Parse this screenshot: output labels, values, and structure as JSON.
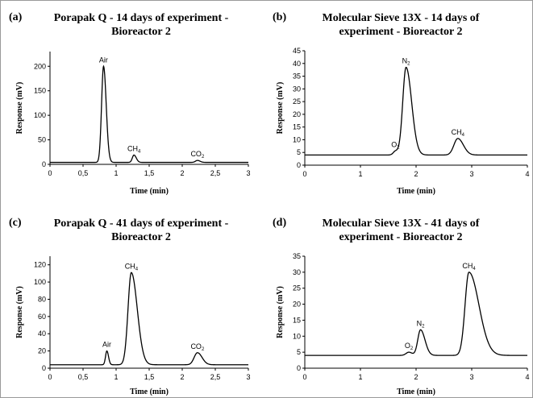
{
  "chart_data": [
    {
      "type": "line",
      "panel_label": "(a)",
      "title_line1": "Porapak Q - 14 days of experiment -",
      "title_line2": "Bioreactor 2",
      "xlabel": "Time (min)",
      "ylabel": "Response (mV)",
      "xlim": [
        0,
        3
      ],
      "ylim": [
        0,
        230
      ],
      "xticks": [
        0,
        0.5,
        1,
        1.5,
        2,
        2.5,
        3
      ],
      "xtick_labels": [
        "0",
        "0,5",
        "1",
        "1,5",
        "2",
        "2,5",
        "3"
      ],
      "yticks": [
        0,
        50,
        100,
        150,
        200
      ],
      "ytick_labels": [
        "0",
        "50",
        "100",
        "150",
        "200"
      ],
      "baseline": 4,
      "peaks": [
        {
          "x": 0.81,
          "height": 200,
          "width_left": 0.03,
          "width_right": 0.04,
          "label": "Air",
          "sub": ""
        },
        {
          "x": 1.27,
          "height": 19,
          "width_left": 0.025,
          "width_right": 0.035,
          "label": "CH",
          "sub": "4"
        },
        {
          "x": 2.23,
          "height": 8,
          "width_left": 0.03,
          "width_right": 0.04,
          "label": "CO",
          "sub": "2"
        }
      ]
    },
    {
      "type": "line",
      "panel_label": "(b)",
      "title_line1": "Molecular Sieve 13X - 14 days of",
      "title_line2": "experiment - Bioreactor 2",
      "xlabel": "Time (min)",
      "ylabel": "Response (mV)",
      "xlim": [
        0,
        4
      ],
      "ylim": [
        0,
        45
      ],
      "xticks": [
        0,
        1,
        2,
        3,
        4
      ],
      "xtick_labels": [
        "0",
        "1",
        "2",
        "3",
        "4"
      ],
      "yticks": [
        0,
        5,
        10,
        15,
        20,
        25,
        30,
        35,
        40,
        45
      ],
      "ytick_labels": [
        "0",
        "5",
        "10",
        "15",
        "20",
        "25",
        "30",
        "35",
        "40",
        "45"
      ],
      "baseline": 4,
      "peaks": [
        {
          "x": 1.63,
          "height": 5.5,
          "width_left": 0.04,
          "width_right": 0.05,
          "label": "O",
          "sub": "2"
        },
        {
          "x": 1.82,
          "height": 38.5,
          "width_left": 0.06,
          "width_right": 0.1,
          "label": "N",
          "sub": "2"
        },
        {
          "x": 2.75,
          "height": 10.5,
          "width_left": 0.07,
          "width_right": 0.1,
          "label": "CH",
          "sub": "4"
        }
      ]
    },
    {
      "type": "line",
      "panel_label": "(c)",
      "title_line1": "Porapak Q - 41 days of experiment -",
      "title_line2": "Bioreactor 2",
      "xlabel": "Time (min)",
      "ylabel": "Response (mV)",
      "xlim": [
        0,
        3
      ],
      "ylim": [
        0,
        130
      ],
      "xticks": [
        0,
        0.5,
        1,
        1.5,
        2,
        2.5,
        3
      ],
      "xtick_labels": [
        "0",
        "0,5",
        "1",
        "1,5",
        "2",
        "2,5",
        "3"
      ],
      "yticks": [
        0,
        20,
        40,
        60,
        80,
        100,
        120
      ],
      "ytick_labels": [
        "0",
        "20",
        "40",
        "60",
        "80",
        "100",
        "120"
      ],
      "baseline": 4,
      "peaks": [
        {
          "x": 0.86,
          "height": 20,
          "width_left": 0.02,
          "width_right": 0.025,
          "label": "Air",
          "sub": ""
        },
        {
          "x": 1.23,
          "height": 111,
          "width_left": 0.05,
          "width_right": 0.09,
          "label": "CH",
          "sub": "4"
        },
        {
          "x": 2.23,
          "height": 18,
          "width_left": 0.05,
          "width_right": 0.07,
          "label": "CO",
          "sub": "2"
        }
      ]
    },
    {
      "type": "line",
      "panel_label": "(d)",
      "title_line1": "Molecular Sieve 13X - 41 days of",
      "title_line2": "experiment  - Bioreactor 2",
      "xlabel": "Time (min)",
      "ylabel": "Response (mV)",
      "xlim": [
        0,
        4
      ],
      "ylim": [
        0,
        35
      ],
      "xticks": [
        0,
        1,
        2,
        3,
        4
      ],
      "xtick_labels": [
        "0",
        "1",
        "2",
        "3",
        "4"
      ],
      "yticks": [
        0,
        5,
        10,
        15,
        20,
        25,
        30,
        35
      ],
      "ytick_labels": [
        "0",
        "5",
        "10",
        "15",
        "20",
        "25",
        "30",
        "35"
      ],
      "baseline": 4,
      "peaks": [
        {
          "x": 1.87,
          "height": 5,
          "width_left": 0.05,
          "width_right": 0.06,
          "label": "O",
          "sub": "2"
        },
        {
          "x": 2.08,
          "height": 12,
          "width_left": 0.05,
          "width_right": 0.08,
          "label": "N",
          "sub": "2"
        },
        {
          "x": 2.95,
          "height": 30,
          "width_left": 0.07,
          "width_right": 0.18,
          "label": "CH",
          "sub": "4"
        }
      ]
    }
  ]
}
